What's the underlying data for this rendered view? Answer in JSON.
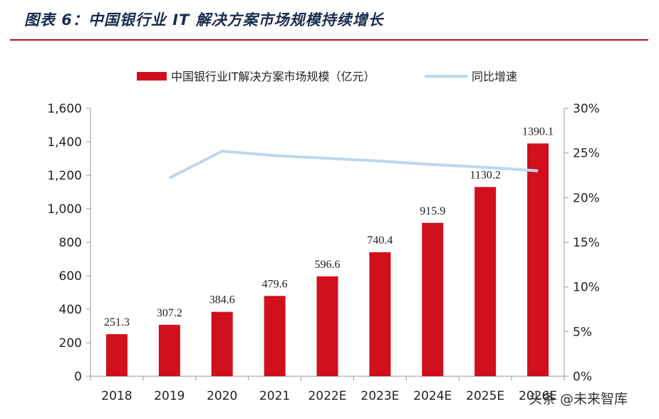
{
  "figure_title": "图表 6：中国银行业 IT 解决方案市场规模持续增长",
  "watermark": "头条 @未来智库",
  "colors": {
    "bar": "#d0101d",
    "line": "#bdd7ee",
    "title": "#1b2d4f",
    "rule": "#b0121d"
  },
  "chart_data": {
    "type": "bar+line",
    "categories": [
      "2018",
      "2019",
      "2020",
      "2021",
      "2022E",
      "2023E",
      "2024E",
      "2025E",
      "2026E"
    ],
    "series": [
      {
        "name": "中国银行业IT解决方案市场规模（亿元）",
        "type": "bar",
        "axis": "left",
        "values": [
          251.3,
          307.2,
          384.6,
          479.6,
          596.6,
          740.4,
          915.9,
          1130.2,
          1390.1
        ],
        "labels": [
          "251.3",
          "307.2",
          "384.6",
          "479.6",
          "596.6",
          "740.4",
          "915.9",
          "1130.2",
          "1390.1"
        ]
      },
      {
        "name": "同比增速",
        "type": "line",
        "axis": "right",
        "values": [
          null,
          0.222,
          0.252,
          0.247,
          0.244,
          0.241,
          0.237,
          0.234,
          0.23
        ]
      }
    ],
    "y_left": {
      "min": 0,
      "max": 1600,
      "ticks": [
        0,
        200,
        400,
        600,
        800,
        1000,
        1200,
        1400,
        1600
      ],
      "tick_labels": [
        "0",
        "200",
        "400",
        "600",
        "800",
        "1,000",
        "1,200",
        "1,400",
        "1,600"
      ]
    },
    "y_right": {
      "min": 0,
      "max": 0.3,
      "ticks": [
        0,
        0.05,
        0.1,
        0.15,
        0.2,
        0.25,
        0.3
      ],
      "tick_labels": [
        "0%",
        "5%",
        "10%",
        "15%",
        "20%",
        "25%",
        "30%"
      ]
    },
    "x_tick_labels": [
      "2018",
      "2019",
      "2020",
      "2021",
      "2022E",
      "2023E",
      "2024E",
      "2025E",
      "2026E"
    ],
    "grid": false,
    "legend_position": "top"
  }
}
